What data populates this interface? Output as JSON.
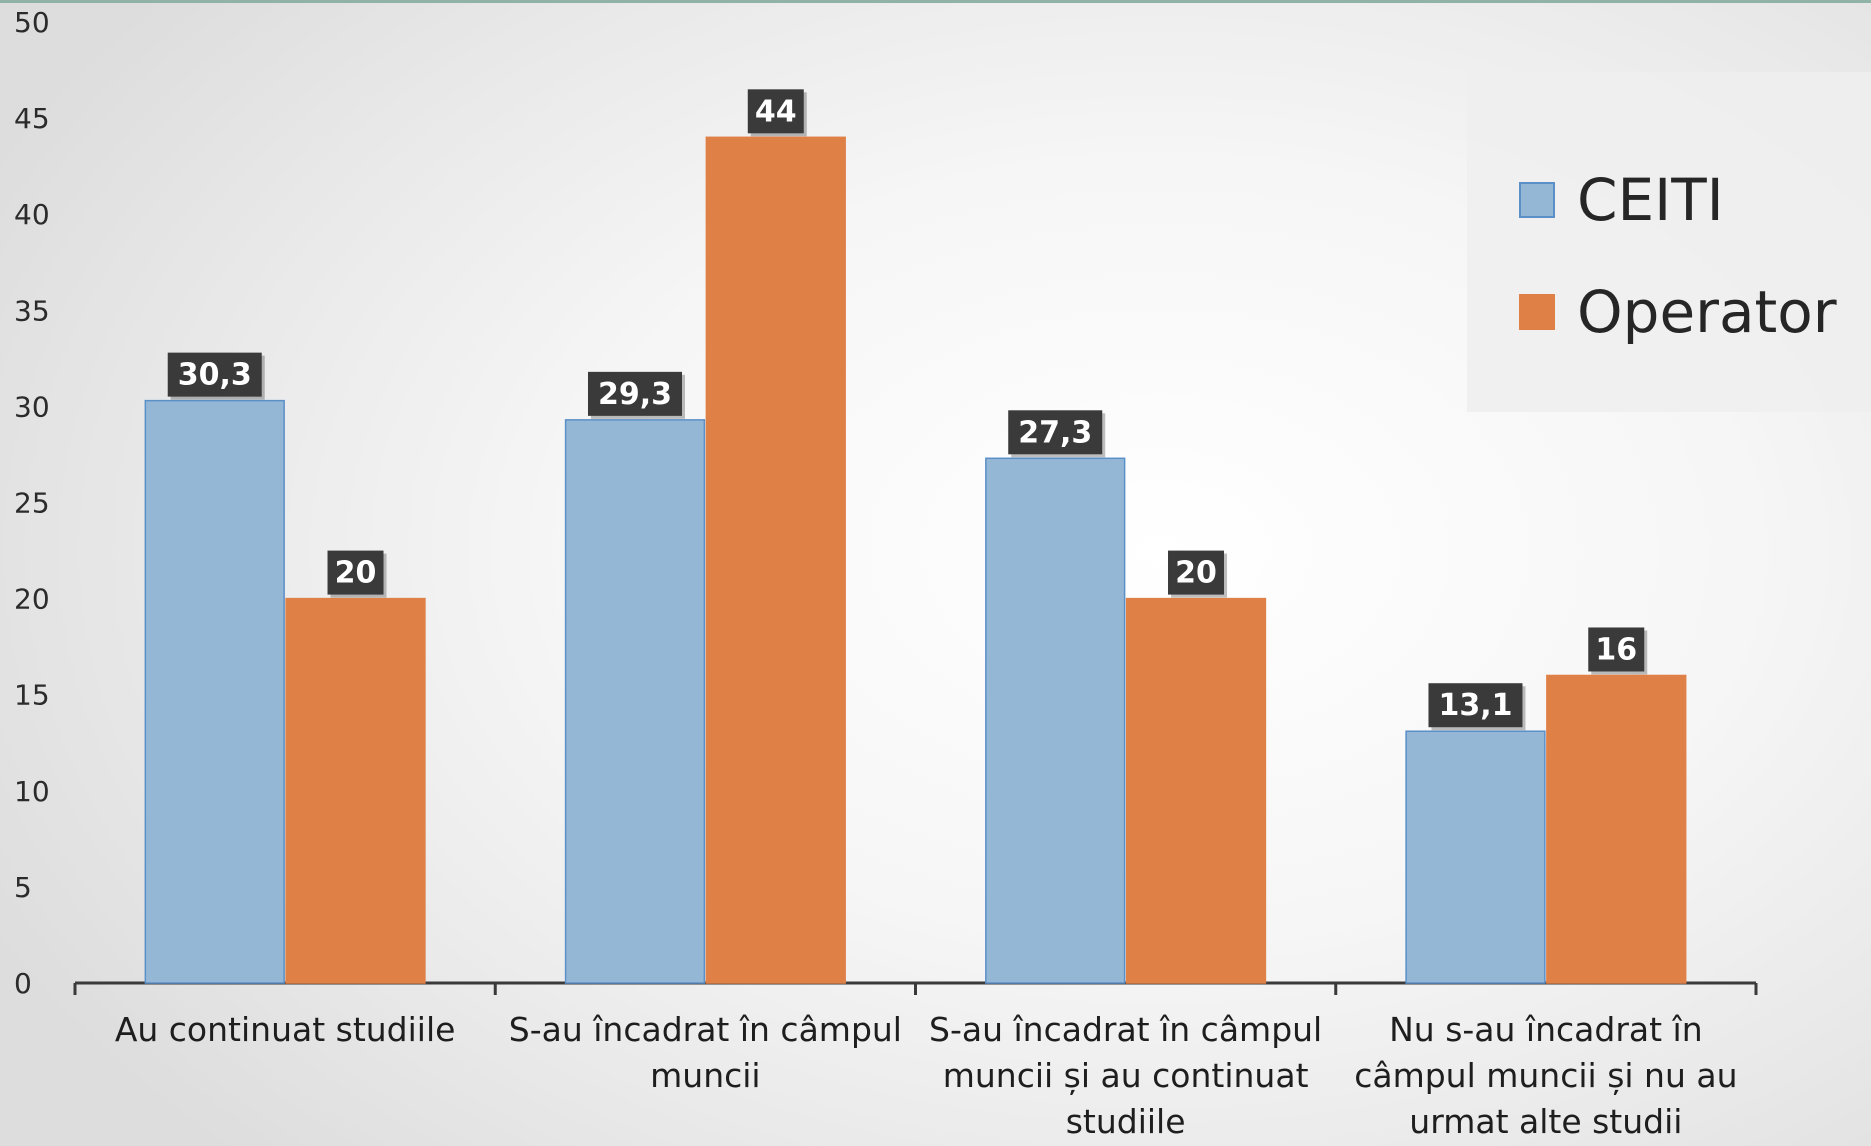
{
  "chart_data": {
    "type": "bar",
    "title": "",
    "xlabel": "",
    "ylabel": "",
    "ylim": [
      0,
      50
    ],
    "yticks": [
      0,
      5,
      10,
      15,
      20,
      25,
      30,
      35,
      40,
      45,
      50
    ],
    "grid": false,
    "legend_position": "top-right",
    "categories": [
      [
        "Au continuat studiile"
      ],
      [
        "S-au încadrat în câmpul",
        "muncii"
      ],
      [
        "S-au încadrat în câmpul",
        "muncii și au continuat",
        "studiile"
      ],
      [
        "Nu s-au încadrat în",
        "câmpul muncii și nu au",
        "urmat alte studii"
      ]
    ],
    "series": [
      {
        "name": "CEITI",
        "values": [
          30.3,
          29.3,
          27.3,
          13.1
        ],
        "labels": [
          "30,3",
          "29,3",
          "27,3",
          "13,1"
        ],
        "color": "#95b7d6",
        "border": "#5b8fc7"
      },
      {
        "name": "Operator",
        "values": [
          20,
          44,
          20,
          16
        ],
        "labels": [
          "20",
          "44",
          "20",
          "16"
        ],
        "color": "#df8047",
        "border": "#df8047"
      }
    ],
    "data_label_bg": "#3a3a3a"
  }
}
